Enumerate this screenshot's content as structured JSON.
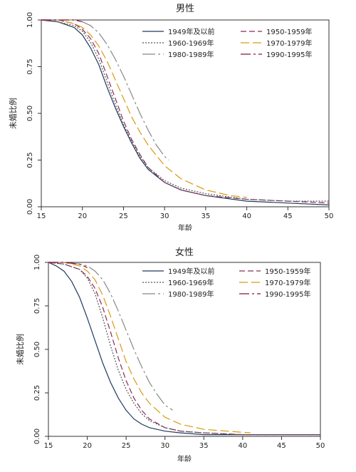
{
  "chart_data": [
    {
      "type": "line",
      "title": "男性",
      "xlabel": "年龄",
      "ylabel": "未婚比例",
      "xlim": [
        15,
        50
      ],
      "ylim": [
        0,
        1
      ],
      "xticks": [
        "15",
        "20",
        "25",
        "30",
        "35",
        "40",
        "45",
        "50"
      ],
      "yticks": [
        "0.00",
        "0.25",
        "0.50",
        "0.75",
        "1.00"
      ],
      "legend_position": "top-right",
      "series": [
        {
          "name": "1949年及以前",
          "color": "#1f3a5c",
          "dash": "solid",
          "x": [
            15,
            17,
            19,
            20,
            21,
            22,
            23,
            24,
            25,
            26,
            27,
            28,
            30,
            32,
            35,
            40,
            45,
            50
          ],
          "y": [
            1.0,
            0.99,
            0.96,
            0.92,
            0.85,
            0.76,
            0.64,
            0.53,
            0.43,
            0.34,
            0.26,
            0.2,
            0.13,
            0.09,
            0.06,
            0.03,
            0.02,
            0.01
          ]
        },
        {
          "name": "1950-1959年",
          "color": "#8b2a5a",
          "dash": "8,4",
          "x": [
            15,
            17,
            19,
            20,
            21,
            22,
            23,
            24,
            25,
            26,
            27,
            28,
            30,
            32,
            35,
            40,
            45,
            50
          ],
          "y": [
            1.0,
            1.0,
            0.98,
            0.95,
            0.9,
            0.82,
            0.7,
            0.58,
            0.46,
            0.36,
            0.28,
            0.21,
            0.13,
            0.09,
            0.06,
            0.04,
            0.03,
            0.02
          ]
        },
        {
          "name": "1960-1969年",
          "color": "#555555",
          "dash": "2,2",
          "x": [
            15,
            17,
            19,
            20,
            21,
            22,
            23,
            24,
            25,
            26,
            27,
            28,
            30,
            32,
            35,
            40,
            45,
            50
          ],
          "y": [
            1.0,
            0.99,
            0.97,
            0.94,
            0.88,
            0.79,
            0.67,
            0.55,
            0.44,
            0.35,
            0.27,
            0.21,
            0.14,
            0.1,
            0.07,
            0.04,
            0.03,
            0.03
          ]
        },
        {
          "name": "1970-1979年",
          "color": "#d89a10",
          "dash": "12,5",
          "x": [
            15,
            17,
            19,
            20,
            21,
            22,
            23,
            24,
            25,
            26,
            27,
            28,
            30,
            32,
            35,
            38,
            40
          ],
          "y": [
            1.0,
            1.0,
            0.98,
            0.96,
            0.92,
            0.86,
            0.78,
            0.68,
            0.58,
            0.48,
            0.4,
            0.33,
            0.22,
            0.15,
            0.09,
            0.06,
            0.05
          ]
        },
        {
          "name": "1980-1989年",
          "color": "#888888",
          "dash": "18,4,3,4",
          "x": [
            15,
            17,
            19,
            20,
            21,
            22,
            23,
            24,
            25,
            26,
            27,
            28,
            29,
            30,
            30.5
          ],
          "y": [
            1.0,
            1.0,
            1.0,
            0.99,
            0.97,
            0.93,
            0.87,
            0.79,
            0.7,
            0.6,
            0.5,
            0.41,
            0.33,
            0.27,
            0.25
          ]
        },
        {
          "name": "1990-1995年",
          "color": "#8b1538",
          "dash": "14,4,3,4",
          "x": [
            15,
            17,
            19,
            20
          ],
          "y": [
            1.0,
            1.0,
            1.0,
            0.99
          ]
        }
      ]
    },
    {
      "type": "line",
      "title": "女性",
      "xlabel": "年龄",
      "ylabel": "未婚比例",
      "xlim": [
        15,
        50
      ],
      "ylim": [
        0,
        1
      ],
      "xticks": [
        "15",
        "20",
        "25",
        "30",
        "35",
        "40",
        "45",
        "50"
      ],
      "yticks": [
        "0.00",
        "0.25",
        "0.50",
        "0.75",
        "1.00"
      ],
      "legend_position": "top-right",
      "series": [
        {
          "name": "1949年及以前",
          "color": "#1f3a5c",
          "dash": "solid",
          "x": [
            15,
            16,
            17,
            18,
            19,
            20,
            21,
            22,
            23,
            24,
            25,
            26,
            27,
            28,
            30,
            32,
            35,
            40,
            45,
            50
          ],
          "y": [
            1.0,
            0.98,
            0.95,
            0.89,
            0.8,
            0.68,
            0.55,
            0.42,
            0.31,
            0.22,
            0.15,
            0.1,
            0.07,
            0.05,
            0.03,
            0.02,
            0.01,
            0.01,
            0.01,
            0.01
          ]
        },
        {
          "name": "1950-1959年",
          "color": "#8b2a5a",
          "dash": "8,4",
          "x": [
            15,
            17,
            19,
            20,
            21,
            22,
            23,
            24,
            25,
            26,
            27,
            28,
            30,
            32,
            35,
            40,
            45,
            50
          ],
          "y": [
            1.0,
            0.99,
            0.96,
            0.92,
            0.85,
            0.74,
            0.6,
            0.45,
            0.32,
            0.22,
            0.15,
            0.1,
            0.05,
            0.03,
            0.02,
            0.01,
            0.01,
            0.01
          ]
        },
        {
          "name": "1960-1969年",
          "color": "#555555",
          "dash": "2,2",
          "x": [
            15,
            17,
            19,
            20,
            21,
            22,
            23,
            24,
            25,
            26,
            27,
            28,
            30,
            32,
            35,
            40,
            45,
            50
          ],
          "y": [
            1.0,
            0.99,
            0.96,
            0.91,
            0.82,
            0.68,
            0.52,
            0.38,
            0.27,
            0.19,
            0.13,
            0.09,
            0.05,
            0.03,
            0.02,
            0.01,
            0.01,
            0.01
          ]
        },
        {
          "name": "1970-1979年",
          "color": "#d89a10",
          "dash": "12,5",
          "x": [
            15,
            17,
            19,
            20,
            21,
            22,
            23,
            24,
            25,
            26,
            27,
            28,
            30,
            32,
            35,
            38,
            41
          ],
          "y": [
            1.0,
            1.0,
            0.98,
            0.95,
            0.9,
            0.81,
            0.69,
            0.56,
            0.43,
            0.33,
            0.25,
            0.19,
            0.11,
            0.07,
            0.04,
            0.03,
            0.02
          ]
        },
        {
          "name": "1980-1989年",
          "color": "#888888",
          "dash": "18,4,3,4",
          "x": [
            15,
            17,
            19,
            20,
            21,
            22,
            23,
            24,
            25,
            26,
            27,
            28,
            29,
            30,
            31
          ],
          "y": [
            1.0,
            1.0,
            0.99,
            0.98,
            0.95,
            0.9,
            0.82,
            0.72,
            0.61,
            0.5,
            0.4,
            0.31,
            0.24,
            0.18,
            0.15
          ]
        },
        {
          "name": "1990-1995年",
          "color": "#8b1538",
          "dash": "14,4,3,4",
          "x": [
            15,
            17,
            19,
            20
          ],
          "y": [
            1.0,
            1.0,
            0.99,
            0.97
          ]
        }
      ]
    }
  ]
}
